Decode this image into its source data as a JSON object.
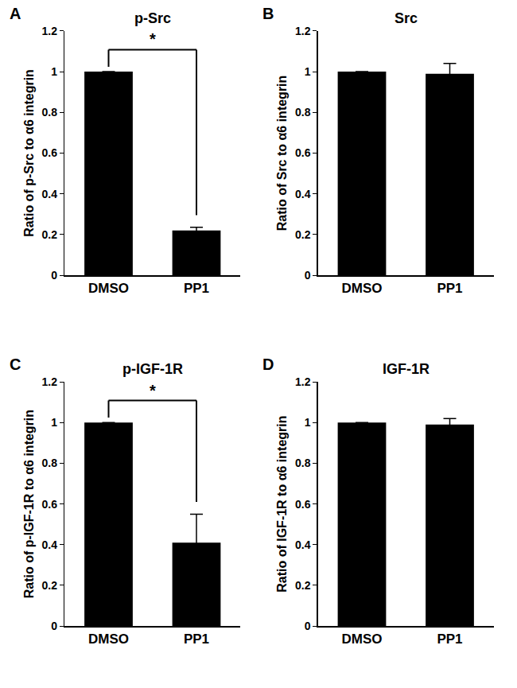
{
  "chart_data": [
    {
      "type": "bar",
      "panel": "A",
      "title": "p-Src",
      "y_label": "Ratio of p-Src to α6 integrin",
      "categories": [
        "DMSO",
        "PP1"
      ],
      "values": [
        1,
        0.22
      ],
      "errors": [
        0,
        0.015
      ],
      "color": "#000000",
      "ylim": [
        0,
        1.2
      ],
      "yticks": [
        0,
        0.2,
        0.4,
        0.6,
        0.8,
        1,
        1.2
      ],
      "grid": false,
      "annotations": [
        {
          "text": "*",
          "between": [
            "DMSO",
            "PP1"
          ]
        }
      ]
    },
    {
      "type": "bar",
      "panel": "B",
      "title": "Src",
      "y_label": "Ratio of Src to α6 integrin",
      "categories": [
        "DMSO",
        "PP1"
      ],
      "values": [
        1,
        0.99
      ],
      "errors": [
        0,
        0.05
      ],
      "color": "#000000",
      "ylim": [
        0,
        1.2
      ],
      "yticks": [
        0,
        0.2,
        0.4,
        0.6,
        0.8,
        1,
        1.2
      ],
      "grid": false
    },
    {
      "type": "bar",
      "panel": "C",
      "title": "p-IGF-1R",
      "y_label": "Ratio of p-IGF-1R to α6 integrin",
      "categories": [
        "DMSO",
        "PP1"
      ],
      "values": [
        1,
        0.41
      ],
      "errors": [
        0,
        0.14
      ],
      "color": "#000000",
      "ylim": [
        0,
        1.2
      ],
      "yticks": [
        0,
        0.2,
        0.4,
        0.6,
        0.8,
        1,
        1.2
      ],
      "grid": false,
      "annotations": [
        {
          "text": "*",
          "between": [
            "DMSO",
            "PP1"
          ]
        }
      ]
    },
    {
      "type": "bar",
      "panel": "D",
      "title": "IGF-1R",
      "y_label": "Ratio of IGF-1R to α6 integrin",
      "categories": [
        "DMSO",
        "PP1"
      ],
      "values": [
        1,
        0.99
      ],
      "errors": [
        0,
        0.03
      ],
      "color": "#000000",
      "ylim": [
        0,
        1.2
      ],
      "yticks": [
        0,
        0.2,
        0.4,
        0.6,
        0.8,
        1,
        1.2
      ],
      "grid": false
    }
  ]
}
